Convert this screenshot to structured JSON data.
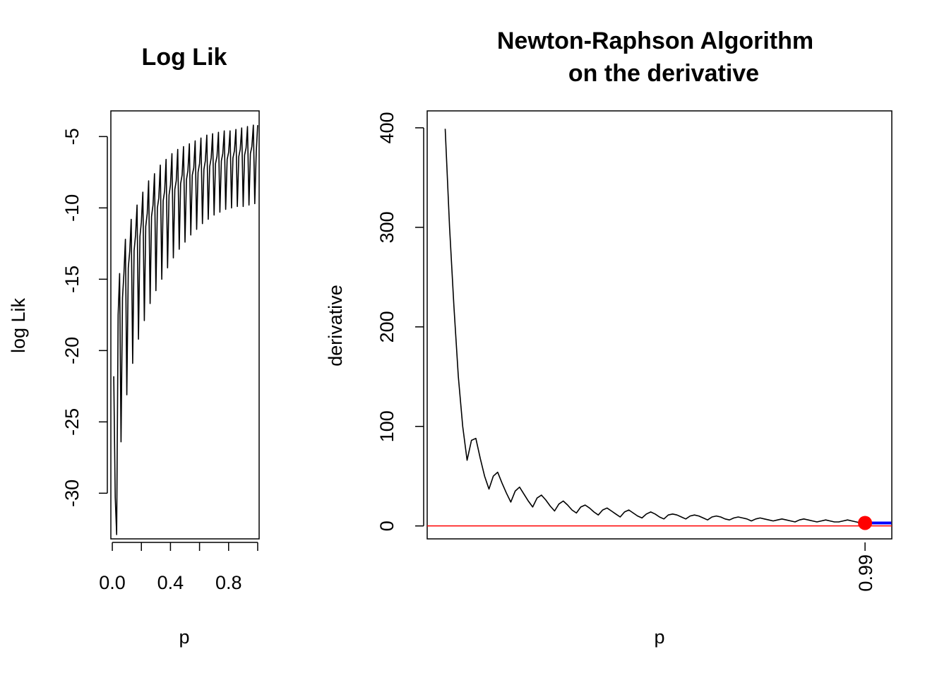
{
  "chart_data": [
    {
      "type": "line",
      "title": "Log Lik",
      "xlabel": "p",
      "ylabel": "log Lik",
      "xlim": [
        -0.01,
        1.01
      ],
      "ylim": [
        -33.2,
        -3.2
      ],
      "xticks": [
        0.0,
        0.2,
        0.4,
        0.6,
        0.8,
        1.0
      ],
      "xtick_labels": [
        "0.0",
        "",
        "0.4",
        "",
        "0.8",
        ""
      ],
      "yticks": [
        -30,
        -25,
        -20,
        -15,
        -10,
        -5
      ],
      "ytick_labels": [
        "-30",
        "-25",
        "-20",
        "-15",
        "-10",
        "-5"
      ],
      "series": [
        {
          "values_x": [
            0.01,
            0.02,
            0.03,
            0.04,
            0.05,
            0.06,
            0.07,
            0.08,
            0.09,
            0.1,
            0.11,
            0.12,
            0.13,
            0.14,
            0.15,
            0.16,
            0.17,
            0.18,
            0.19,
            0.2,
            0.21,
            0.22,
            0.23,
            0.24,
            0.25,
            0.26,
            0.27,
            0.28,
            0.29,
            0.3,
            0.31,
            0.32,
            0.33,
            0.34,
            0.35,
            0.36,
            0.37,
            0.38,
            0.39,
            0.4,
            0.41,
            0.42,
            0.43,
            0.44,
            0.45,
            0.46,
            0.47,
            0.48,
            0.49,
            0.5,
            0.51,
            0.52,
            0.53,
            0.54,
            0.55,
            0.56,
            0.57,
            0.58,
            0.59,
            0.6,
            0.61,
            0.62,
            0.63,
            0.64,
            0.65,
            0.66,
            0.67,
            0.68,
            0.69,
            0.7,
            0.71,
            0.72,
            0.73,
            0.74,
            0.75,
            0.76,
            0.77,
            0.78,
            0.79,
            0.8,
            0.81,
            0.82,
            0.83,
            0.84,
            0.85,
            0.86,
            0.87,
            0.88,
            0.89,
            0.9,
            0.91,
            0.92,
            0.93,
            0.94,
            0.95,
            0.96,
            0.97,
            0.98,
            0.99,
            1.0
          ],
          "values_y": [
            -21.8,
            -30.3,
            -32.9,
            -17.5,
            -14.6,
            -26.4,
            -16.3,
            -14.6,
            -12.2,
            -23.1,
            -14.2,
            -13.0,
            -10.8,
            -20.9,
            -13.0,
            -11.9,
            -9.8,
            -19.2,
            -12.0,
            -11.0,
            -8.9,
            -17.9,
            -11.3,
            -10.4,
            -8.1,
            -16.7,
            -10.6,
            -9.8,
            -7.6,
            -15.8,
            -10.0,
            -9.3,
            -7.0,
            -15.0,
            -9.5,
            -8.8,
            -6.6,
            -14.2,
            -9.1,
            -8.4,
            -6.2,
            -13.5,
            -8.7,
            -8.1,
            -5.9,
            -12.9,
            -8.3,
            -7.7,
            -5.7,
            -12.4,
            -8.0,
            -7.4,
            -5.5,
            -11.9,
            -7.7,
            -7.2,
            -5.3,
            -11.5,
            -7.5,
            -6.9,
            -5.1,
            -11.1,
            -7.3,
            -6.7,
            -4.9,
            -10.8,
            -7.1,
            -6.5,
            -4.8,
            -10.5,
            -6.9,
            -6.4,
            -4.7,
            -10.3,
            -6.7,
            -6.2,
            -4.6,
            -10.1,
            -6.6,
            -6.1,
            -4.6,
            -10.0,
            -6.5,
            -6.0,
            -4.5,
            -9.9,
            -6.4,
            -5.9,
            -4.4,
            -9.9,
            -6.3,
            -5.8,
            -4.3,
            -9.8,
            -6.2,
            -5.7,
            -4.2,
            -9.7,
            -6.1,
            -4.2
          ]
        }
      ]
    },
    {
      "type": "line",
      "title": "Newton-Raphson Algorithm\non the derivative",
      "title_lines": [
        "Newton-Raphson Algorithm",
        "on the derivative"
      ],
      "xlabel": "p",
      "ylabel": "derivative",
      "xlim": [
        -0.0012,
        1.0612
      ],
      "ylim": [
        -13,
        417
      ],
      "xticks": [
        1.0
      ],
      "xtick_labels": [
        "0.99"
      ],
      "yticks": [
        0,
        100,
        200,
        300,
        400
      ],
      "ytick_labels": [
        "0",
        "100",
        "200",
        "300",
        "400"
      ],
      "hline": {
        "y": 0,
        "color": "#ff0000"
      },
      "marker": {
        "x": 1.0,
        "y": 3,
        "color": "#ff0000"
      },
      "segment": {
        "x": [
          1.0,
          1.06
        ],
        "y": [
          3,
          3
        ],
        "color": "#0000ff"
      },
      "series": [
        {
          "color": "#000000",
          "values_x": [
            0.04,
            0.05,
            0.06,
            0.07,
            0.08,
            0.09,
            0.1,
            0.11,
            0.12,
            0.13,
            0.14,
            0.15,
            0.16,
            0.17,
            0.18,
            0.19,
            0.2,
            0.21,
            0.22,
            0.23,
            0.24,
            0.25,
            0.26,
            0.27,
            0.28,
            0.29,
            0.3,
            0.31,
            0.32,
            0.33,
            0.34,
            0.35,
            0.36,
            0.37,
            0.38,
            0.39,
            0.4,
            0.41,
            0.42,
            0.43,
            0.44,
            0.45,
            0.46,
            0.47,
            0.48,
            0.49,
            0.5,
            0.51,
            0.52,
            0.53,
            0.54,
            0.55,
            0.56,
            0.57,
            0.58,
            0.59,
            0.6,
            0.61,
            0.62,
            0.63,
            0.64,
            0.65,
            0.66,
            0.67,
            0.68,
            0.69,
            0.7,
            0.71,
            0.72,
            0.73,
            0.74,
            0.75,
            0.76,
            0.77,
            0.78,
            0.79,
            0.8,
            0.81,
            0.82,
            0.83,
            0.84,
            0.85,
            0.86,
            0.87,
            0.88,
            0.89,
            0.9,
            0.91,
            0.92,
            0.93,
            0.94,
            0.95,
            0.96,
            0.97,
            0.98,
            0.99,
            1.0
          ],
          "values_y": [
            399,
            300,
            220,
            150,
            100,
            66,
            86,
            88,
            68,
            50,
            37,
            50,
            54,
            43,
            33,
            24,
            35,
            39,
            32,
            25,
            19,
            28,
            31,
            26,
            20,
            15,
            22,
            25,
            21,
            16,
            13,
            19,
            21,
            18,
            14,
            11,
            16,
            18,
            15,
            12,
            9,
            14,
            16,
            13,
            10,
            8,
            12,
            14,
            12,
            9,
            7,
            11,
            12,
            11,
            9,
            7,
            10,
            11,
            10,
            8,
            6,
            9,
            10,
            9,
            7,
            6,
            8,
            9,
            8,
            7,
            5,
            7,
            8,
            7,
            6,
            5,
            6,
            7,
            6,
            5,
            4,
            6,
            7,
            6,
            5,
            4,
            5,
            6,
            5,
            4,
            4,
            5,
            6,
            5,
            4,
            3,
            3
          ]
        }
      ]
    }
  ]
}
